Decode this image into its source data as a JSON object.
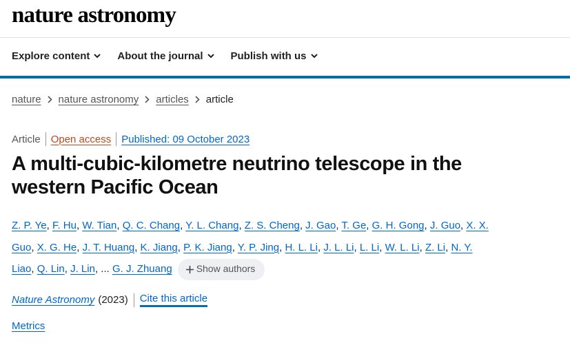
{
  "header": {
    "logo": "nature astronomy"
  },
  "nav": [
    "Explore content",
    "About the journal",
    "Publish with us"
  ],
  "breadcrumbs": [
    "nature",
    "nature astronomy",
    "articles",
    "article"
  ],
  "article": {
    "type": "Article",
    "access": "Open access",
    "published": "Published: 09 October 2023",
    "title": "A multi-cubic-kilometre neutrino telescope in the western Pacific Ocean",
    "authors": [
      "Z. P. Ye",
      "F. Hu",
      "W. Tian",
      "Q. C. Chang",
      "Y. L. Chang",
      "Z. S. Cheng",
      "J. Gao",
      "T. Ge",
      "G. H. Gong",
      "J. Guo",
      "X. X. Guo",
      "X. G. He",
      "J. T. Huang",
      "K. Jiang",
      "P. K. Jiang",
      "Y. P. Jing",
      "H. L. Li",
      "J. L. Li",
      "L. Li",
      "W. L. Li",
      "Z. Li",
      "N. Y. Liao",
      "Q. Lin",
      "J. Lin"
    ],
    "author_separator": ",",
    "ellipsis": "...",
    "last_author": "G. J. Zhuang",
    "show_authors": "Show authors",
    "journal": "Nature Astronomy",
    "year": "(2023)",
    "cite": "Cite this article",
    "metrics": "Metrics"
  }
}
